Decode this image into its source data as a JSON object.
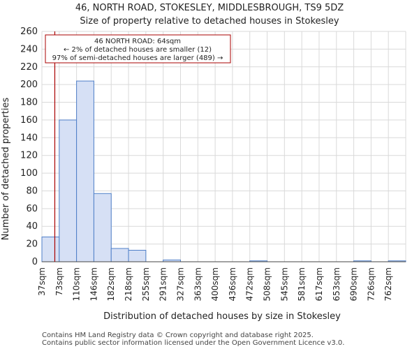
{
  "chart_data": {
    "type": "bar",
    "title": "46, NORTH ROAD, STOKESLEY, MIDDLESBROUGH, TS9 5DZ",
    "subtitle": "Size of property relative to detached houses in Stokesley",
    "xlabel": "Distribution of detached houses by size in Stokesley",
    "ylabel": "Number of detached properties",
    "categories": [
      "37sqm",
      "73sqm",
      "110sqm",
      "146sqm",
      "182sqm",
      "218sqm",
      "255sqm",
      "291sqm",
      "327sqm",
      "363sqm",
      "400sqm",
      "436sqm",
      "472sqm",
      "508sqm",
      "545sqm",
      "581sqm",
      "617sqm",
      "653sqm",
      "690sqm",
      "726sqm",
      "762sqm"
    ],
    "values": [
      28,
      160,
      204,
      77,
      15,
      13,
      0,
      2,
      0,
      0,
      0,
      0,
      1,
      0,
      0,
      0,
      0,
      0,
      1,
      0,
      1
    ],
    "ylim": [
      0,
      260
    ],
    "yticks": [
      0,
      20,
      40,
      60,
      80,
      100,
      120,
      140,
      160,
      180,
      200,
      220,
      240,
      260
    ],
    "marker": {
      "value": 64,
      "unit": "sqm",
      "color": "#aa0000",
      "lines": [
        "46 NORTH ROAD: 64sqm",
        "← 2% of detached houses are smaller (12)",
        "97% of semi-detached houses are larger (489) →"
      ]
    },
    "bar_fill": "#d6e0f5",
    "bar_edge": "#4f7fc8",
    "grid": true
  },
  "footer": {
    "line1": "Contains HM Land Registry data © Crown copyright and database right 2025.",
    "line2": "Contains public sector information licensed under the Open Government Licence v3.0."
  }
}
